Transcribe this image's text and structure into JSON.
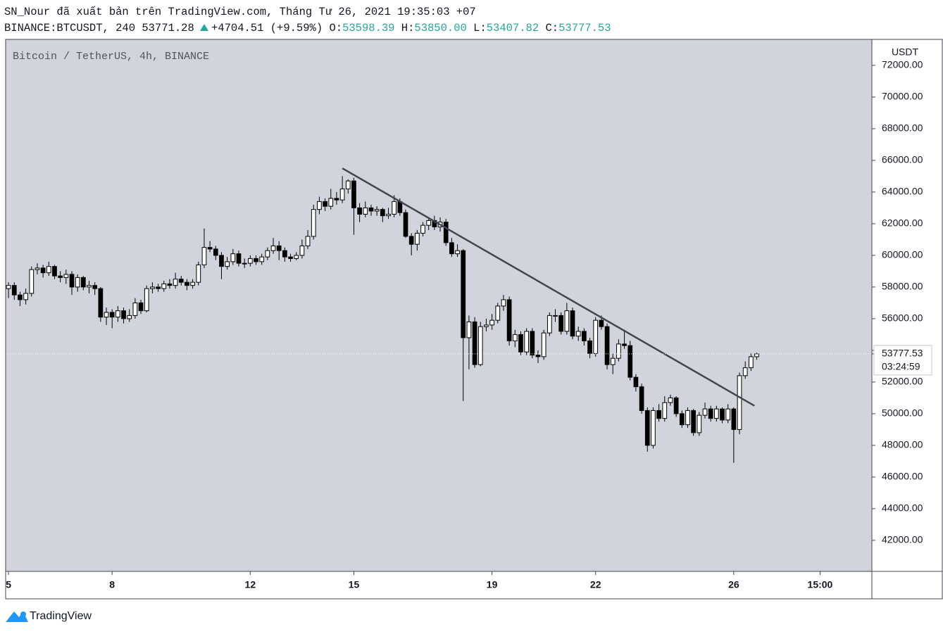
{
  "header": {
    "line1": "SN_Nour đã xuất bản trên TradingView.com, Tháng Tư 26, 2021 19:35:03 +07",
    "symbol": "BINANCE:BTCUSDT, 240 53771.28",
    "change": "+4704.51 (+9.59%)",
    "o_label": "O:",
    "o": "53598.39",
    "h_label": "H:",
    "h": "53850.00",
    "l_label": "L:",
    "l": "53407.82",
    "c_label": "C:",
    "c": "53777.53"
  },
  "chart_data": {
    "type": "candlestick",
    "title": "Bitcoin / TetherUS, 4h, BINANCE",
    "y_axis_label": "USDT",
    "countdown": "03:24:59",
    "up_color": "#ffffff",
    "down_color": "#000000",
    "background": "#d1d4dc",
    "xlim": [
      -0.5,
      150
    ],
    "xticks": [
      {
        "value": 0,
        "label": "5"
      },
      {
        "value": 18,
        "label": "8"
      },
      {
        "value": 42,
        "label": "12"
      },
      {
        "value": 60,
        "label": "15"
      },
      {
        "value": 84,
        "label": "19"
      },
      {
        "value": 102,
        "label": "22"
      },
      {
        "value": 126,
        "label": "26"
      },
      {
        "value": 141,
        "label": "15:00"
      }
    ],
    "ylim": [
      40040,
      73640
    ],
    "yticks": [
      {
        "value": 42000,
        "label": "42000.00"
      },
      {
        "value": 44000,
        "label": "44000.00"
      },
      {
        "value": 46000,
        "label": "46000.00"
      },
      {
        "value": 48000,
        "label": "48000.00"
      },
      {
        "value": 50000,
        "label": "50000.00"
      },
      {
        "value": 52000,
        "label": "52000.00"
      },
      {
        "value": 54000,
        "label": "54000.00"
      },
      {
        "value": 56000,
        "label": "56000.00"
      },
      {
        "value": 58000,
        "label": "58000.00"
      },
      {
        "value": 60000,
        "label": "60000.00"
      },
      {
        "value": 62000,
        "label": "62000.00"
      },
      {
        "value": 64000,
        "label": "64000.00"
      },
      {
        "value": 66000,
        "label": "66000.00"
      },
      {
        "value": 68000,
        "label": "68000.00"
      },
      {
        "value": 70000,
        "label": "70000.00"
      },
      {
        "value": 72000,
        "label": "72000.00"
      }
    ],
    "trendline": {
      "x": [
        58,
        129.6
      ],
      "y": [
        65500,
        50500
      ],
      "color": "#434651"
    },
    "ohlc": [
      [
        57900,
        58300,
        57300,
        58100
      ],
      [
        58100,
        58300,
        57200,
        57500
      ],
      [
        57500,
        57700,
        56800,
        57200
      ],
      [
        57200,
        57900,
        56900,
        57600
      ],
      [
        57600,
        59300,
        57400,
        59100
      ],
      [
        59100,
        59500,
        58800,
        59200
      ],
      [
        59200,
        59400,
        58600,
        58900
      ],
      [
        58900,
        59600,
        58700,
        59300
      ],
      [
        59300,
        59400,
        58500,
        58700
      ],
      [
        58700,
        59000,
        58300,
        58600
      ],
      [
        58600,
        59100,
        58200,
        58800
      ],
      [
        58800,
        59000,
        57500,
        58000
      ],
      [
        58000,
        58800,
        57700,
        58600
      ],
      [
        58600,
        58700,
        57800,
        58000
      ],
      [
        58000,
        58400,
        57600,
        58100
      ],
      [
        58100,
        58300,
        57500,
        57900
      ],
      [
        57900,
        58000,
        55800,
        56100
      ],
      [
        56100,
        56700,
        55600,
        56400
      ],
      [
        56400,
        56600,
        55400,
        56100
      ],
      [
        56100,
        56800,
        55800,
        56500
      ],
      [
        56500,
        56700,
        55700,
        56000
      ],
      [
        56000,
        56600,
        55800,
        56200
      ],
      [
        56200,
        57300,
        56000,
        57000
      ],
      [
        57000,
        57200,
        56300,
        56500
      ],
      [
        56500,
        58100,
        56400,
        57900
      ],
      [
        57900,
        58300,
        57600,
        58000
      ],
      [
        58000,
        58200,
        57700,
        57900
      ],
      [
        57900,
        58400,
        57700,
        58200
      ],
      [
        58200,
        58500,
        57900,
        58100
      ],
      [
        58100,
        58900,
        57900,
        58500
      ],
      [
        58500,
        58700,
        58100,
        58300
      ],
      [
        58300,
        58500,
        57800,
        58100
      ],
      [
        58100,
        58500,
        57900,
        58300
      ],
      [
        58300,
        59600,
        58100,
        59400
      ],
      [
        59400,
        61700,
        59200,
        60500
      ],
      [
        60500,
        60900,
        60200,
        60400
      ],
      [
        60400,
        60600,
        59700,
        60000
      ],
      [
        60000,
        60200,
        58500,
        59300
      ],
      [
        59300,
        59900,
        59100,
        59600
      ],
      [
        59600,
        60400,
        59400,
        60100
      ],
      [
        60100,
        60300,
        59300,
        59500
      ],
      [
        59500,
        59800,
        59200,
        59500
      ],
      [
        59500,
        60000,
        59300,
        59800
      ],
      [
        59800,
        60000,
        59400,
        59600
      ],
      [
        59600,
        60100,
        59400,
        59900
      ],
      [
        59900,
        60500,
        59700,
        60300
      ],
      [
        60300,
        61100,
        60100,
        60600
      ],
      [
        60600,
        60900,
        59700,
        60300
      ],
      [
        60300,
        60500,
        59600,
        59900
      ],
      [
        59900,
        60100,
        59600,
        59800
      ],
      [
        59800,
        60200,
        59700,
        60000
      ],
      [
        60000,
        61000,
        59800,
        60600
      ],
      [
        60600,
        61600,
        60400,
        61200
      ],
      [
        61200,
        63200,
        61000,
        62900
      ],
      [
        62900,
        63700,
        62600,
        63400
      ],
      [
        63400,
        63600,
        62800,
        63100
      ],
      [
        63100,
        64200,
        62900,
        63600
      ],
      [
        63600,
        64000,
        63200,
        63500
      ],
      [
        63500,
        65000,
        63300,
        64200
      ],
      [
        64200,
        64800,
        63900,
        64700
      ],
      [
        64700,
        64900,
        61300,
        63000
      ],
      [
        63000,
        63300,
        62100,
        62600
      ],
      [
        62600,
        63400,
        62400,
        63000
      ],
      [
        63000,
        63200,
        62500,
        62800
      ],
      [
        62800,
        63100,
        62500,
        62900
      ],
      [
        62900,
        63000,
        62100,
        62500
      ],
      [
        62500,
        63000,
        62300,
        62600
      ],
      [
        62600,
        63800,
        62400,
        63400
      ],
      [
        63400,
        63600,
        62500,
        62700
      ],
      [
        62700,
        62900,
        61100,
        61200
      ],
      [
        61200,
        61400,
        60000,
        60700
      ],
      [
        60700,
        61600,
        60300,
        61400
      ],
      [
        61400,
        62100,
        61200,
        61900
      ],
      [
        61900,
        62400,
        61600,
        62200
      ],
      [
        62200,
        62500,
        61600,
        61800
      ],
      [
        61800,
        62400,
        61500,
        62100
      ],
      [
        62100,
        62300,
        60600,
        60800
      ],
      [
        60800,
        61100,
        59900,
        60100
      ],
      [
        60100,
        60700,
        59900,
        60300
      ],
      [
        60300,
        60400,
        50800,
        54800
      ],
      [
        54800,
        56200,
        52800,
        55800
      ],
      [
        55800,
        56100,
        52900,
        53100
      ],
      [
        53100,
        55800,
        53000,
        55500
      ],
      [
        55500,
        56000,
        55200,
        55600
      ],
      [
        55600,
        56300,
        55300,
        55900
      ],
      [
        55900,
        57000,
        55700,
        56800
      ],
      [
        56800,
        57500,
        56500,
        57200
      ],
      [
        57200,
        57400,
        54300,
        54600
      ],
      [
        54600,
        55300,
        54200,
        55000
      ],
      [
        55000,
        55200,
        53700,
        53900
      ],
      [
        53900,
        55400,
        53700,
        55200
      ],
      [
        55200,
        55400,
        53500,
        53700
      ],
      [
        53700,
        54000,
        53200,
        53600
      ],
      [
        53600,
        55300,
        53400,
        55100
      ],
      [
        55100,
        56400,
        54900,
        56200
      ],
      [
        56200,
        56600,
        55800,
        56200
      ],
      [
        56200,
        56400,
        55000,
        55200
      ],
      [
        55200,
        57000,
        55000,
        56500
      ],
      [
        56500,
        56700,
        54700,
        54900
      ],
      [
        54900,
        55500,
        54600,
        55200
      ],
      [
        55200,
        55400,
        54300,
        54600
      ],
      [
        54600,
        54800,
        53500,
        53800
      ],
      [
        53800,
        56100,
        53600,
        55900
      ],
      [
        55900,
        56200,
        55300,
        55500
      ],
      [
        55500,
        55700,
        52800,
        53100
      ],
      [
        53100,
        53800,
        52500,
        53500
      ],
      [
        53500,
        54700,
        53300,
        54400
      ],
      [
        54400,
        55300,
        54100,
        54300
      ],
      [
        54300,
        54600,
        52100,
        52300
      ],
      [
        52300,
        52500,
        51400,
        51700
      ],
      [
        51700,
        51900,
        50000,
        50200
      ],
      [
        50200,
        50400,
        47600,
        48000
      ],
      [
        48000,
        50400,
        47800,
        50200
      ],
      [
        50200,
        50600,
        49500,
        49700
      ],
      [
        49700,
        51100,
        49500,
        50700
      ],
      [
        50700,
        51200,
        50500,
        51000
      ],
      [
        51000,
        51100,
        49800,
        50000
      ],
      [
        50000,
        50200,
        49100,
        49300
      ],
      [
        49300,
        50400,
        49100,
        50200
      ],
      [
        50200,
        50300,
        48600,
        48800
      ],
      [
        48800,
        50100,
        48600,
        49900
      ],
      [
        49900,
        50700,
        49700,
        50300
      ],
      [
        50300,
        50500,
        49500,
        49700
      ],
      [
        49700,
        50500,
        49500,
        50300
      ],
      [
        50300,
        50400,
        49400,
        49600
      ],
      [
        49600,
        50600,
        49400,
        50300
      ],
      [
        50300,
        50400,
        46900,
        49000
      ],
      [
        49000,
        52600,
        48700,
        52400
      ],
      [
        52400,
        53300,
        52200,
        52900
      ],
      [
        52900,
        53800,
        52700,
        53600
      ],
      [
        53598.39,
        53850,
        53407.82,
        53777.53
      ]
    ]
  },
  "footer": {
    "brand": "TradingView"
  }
}
